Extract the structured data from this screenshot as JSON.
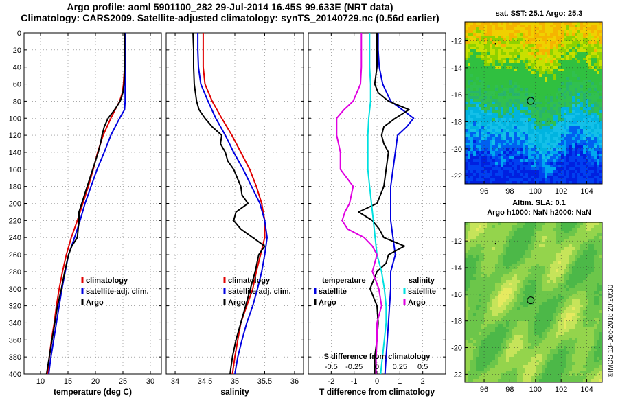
{
  "header": {
    "title_line1": "Argo profile: aoml 5901100_282 29-Jul-2014 16.45S 99.633E (NRT data)",
    "title_line2": "Climatology: CARS2009. Satellite-adjusted climatology: synTS_20140729.nc (0.56d earlier)"
  },
  "maps": {
    "sst": {
      "title": "sat. SST: 25.1 Argo: 25.3",
      "xticks": [
        96,
        98,
        100,
        102,
        104
      ],
      "yticks": [
        -12,
        -14,
        -16,
        -18,
        -20,
        -22
      ],
      "xlim": [
        94.5,
        105.2
      ],
      "ylim": [
        -22.6,
        -10.6
      ],
      "argo_lon": 99.63,
      "argo_lat": -16.45,
      "dot_lon": 96.9,
      "dot_lat": -12.2
    },
    "sla": {
      "title_line1": "Altim. SLA: 0.1",
      "title_line2": "Argo h1000: NaN h2000: NaN",
      "xticks": [
        96,
        98,
        100,
        102,
        104
      ],
      "yticks": [
        -12,
        -14,
        -16,
        -18,
        -20,
        -22
      ],
      "xlim": [
        94.5,
        105.2
      ],
      "ylim": [
        -22.6,
        -10.6
      ],
      "argo_lon": 99.63,
      "argo_lat": -16.45,
      "dot_lon": 96.9,
      "dot_lat": -12.2
    }
  },
  "credit": "©IMOS 13-Dec-2018 20:20:30",
  "colors": {
    "climatology": "#e00000",
    "satellite": "#0000e0",
    "argo": "#000000",
    "sat_salinity": "#00e0e0",
    "sal_salinity": "#e000e0"
  },
  "chart_data": [
    {
      "type": "line",
      "id": "temperature",
      "xlabel": "temperature (deg C)",
      "ylabel": "",
      "xlim": [
        7,
        32
      ],
      "ylim": [
        400,
        0
      ],
      "xticks": [
        10,
        15,
        20,
        25,
        30
      ],
      "yticks": [
        0,
        20,
        40,
        60,
        80,
        100,
        120,
        140,
        160,
        180,
        200,
        220,
        240,
        260,
        280,
        300,
        320,
        340,
        360,
        380,
        400
      ],
      "legend": [
        "climatology",
        "satellite-adj. clim.",
        "Argo"
      ],
      "legend_position": "lower-right",
      "series": [
        {
          "name": "climatology",
          "color": "#e00000",
          "depth": [
            0,
            20,
            40,
            60,
            70,
            80,
            90,
            100,
            120,
            140,
            160,
            180,
            200,
            220,
            240,
            260,
            280,
            300,
            320,
            340,
            360,
            380,
            400
          ],
          "values": [
            25.3,
            25.3,
            25.3,
            25.1,
            24.9,
            24.4,
            23.6,
            22.8,
            21.4,
            20.4,
            19.6,
            18.7,
            17.7,
            16.7,
            15.6,
            14.7,
            14.0,
            13.4,
            12.9,
            12.5,
            12.0,
            11.6,
            11.3
          ]
        },
        {
          "name": "satellite-adj. clim.",
          "color": "#0000e0",
          "depth": [
            0,
            20,
            40,
            60,
            80,
            90,
            100,
            120,
            140,
            160,
            180,
            200,
            220,
            240,
            260,
            280,
            300,
            320,
            340,
            360,
            380,
            400
          ],
          "values": [
            25.4,
            25.4,
            25.4,
            25.4,
            25.4,
            25.3,
            24.4,
            22.8,
            21.6,
            20.3,
            19.2,
            18.1,
            17.2,
            16.2,
            15.1,
            14.5,
            13.9,
            13.4,
            12.9,
            12.4,
            11.9,
            11.5
          ]
        },
        {
          "name": "Argo",
          "color": "#000000",
          "depth": [
            0,
            20,
            40,
            60,
            70,
            80,
            90,
            100,
            110,
            120,
            130,
            140,
            150,
            160,
            180,
            200,
            210,
            220,
            240,
            250,
            260,
            280,
            300,
            320,
            340,
            360,
            380,
            400
          ],
          "values": [
            25.3,
            25.3,
            25.3,
            25.2,
            25.0,
            24.5,
            23.5,
            22.3,
            21.6,
            21.2,
            20.9,
            20.5,
            20.0,
            19.5,
            18.5,
            17.5,
            17.0,
            17.0,
            16.7,
            15.7,
            15.1,
            14.4,
            13.8,
            13.1,
            12.6,
            12.1,
            11.6,
            11.1
          ]
        }
      ]
    },
    {
      "type": "line",
      "id": "salinity",
      "xlabel": "salinity",
      "ylabel": "",
      "xlim": [
        33.85,
        36.15
      ],
      "ylim": [
        400,
        0
      ],
      "xticks": [
        34,
        34.5,
        35,
        35.5,
        36
      ],
      "legend": [
        "climatology",
        "satellite-adj. clim.",
        "Argo"
      ],
      "legend_position": "lower-right",
      "series": [
        {
          "name": "climatology",
          "color": "#e00000",
          "depth": [
            0,
            20,
            40,
            60,
            80,
            100,
            120,
            140,
            160,
            180,
            200,
            220,
            240,
            260,
            280,
            300,
            320,
            340,
            360,
            380,
            400
          ],
          "values": [
            34.47,
            34.47,
            34.47,
            34.5,
            34.62,
            34.78,
            34.95,
            35.1,
            35.25,
            35.36,
            35.45,
            35.5,
            35.5,
            35.43,
            35.36,
            35.3,
            35.2,
            35.1,
            35.05,
            35.0,
            34.96
          ]
        },
        {
          "name": "satellite-adj. clim.",
          "color": "#0000e0",
          "depth": [
            0,
            20,
            40,
            60,
            80,
            100,
            120,
            140,
            160,
            180,
            200,
            220,
            240,
            260,
            280,
            300,
            320,
            340,
            360,
            380,
            400
          ],
          "values": [
            34.38,
            34.38,
            34.39,
            34.43,
            34.55,
            34.68,
            34.84,
            34.98,
            35.14,
            35.28,
            35.42,
            35.5,
            35.54,
            35.5,
            35.45,
            35.38,
            35.3,
            35.2,
            35.12,
            35.05,
            35.0
          ]
        },
        {
          "name": "Argo",
          "color": "#000000",
          "depth": [
            0,
            20,
            40,
            60,
            80,
            90,
            100,
            110,
            120,
            130,
            140,
            150,
            160,
            180,
            190,
            200,
            205,
            210,
            220,
            230,
            240,
            250,
            260,
            280,
            300,
            320,
            340,
            360,
            380,
            400
          ],
          "values": [
            34.3,
            34.31,
            34.31,
            34.32,
            34.36,
            34.4,
            34.5,
            34.62,
            34.78,
            34.76,
            34.84,
            34.88,
            34.98,
            35.1,
            35.12,
            35.22,
            35.12,
            35.02,
            34.98,
            35.1,
            35.3,
            35.5,
            35.4,
            35.34,
            35.26,
            35.18,
            35.1,
            35.02,
            34.96,
            34.92
          ]
        }
      ]
    },
    {
      "type": "line",
      "id": "differences",
      "xlabel": "T difference from climatology",
      "xlabel_top": "S difference from climatology",
      "ylabel": "",
      "xlim": [
        -3,
        3
      ],
      "ylim": [
        400,
        0
      ],
      "xticks": [
        -2,
        -1,
        0,
        1,
        2
      ],
      "xlim_s": [
        -0.75,
        0.75
      ],
      "xticks_s": [
        -0.5,
        -0.25,
        0,
        0.25,
        0.5
      ],
      "xticklabels_s": [
        "-0.5",
        "-0.25",
        "0",
        "0.25",
        "0.5"
      ],
      "legend_temperature_title": "temperature",
      "legend_salinity_title": "salinity",
      "legend": [
        "satellite",
        "Argo"
      ],
      "legend_position": "lower-middle",
      "series": [
        {
          "name": "temperature satellite",
          "axis": "T",
          "color": "#0000e0",
          "depth": [
            0,
            20,
            40,
            60,
            80,
            90,
            100,
            110,
            120,
            140,
            160,
            180,
            200,
            220,
            240,
            260,
            280,
            300,
            320,
            340,
            360,
            380,
            400
          ],
          "values": [
            0.05,
            0.05,
            0.1,
            0.25,
            0.6,
            1.1,
            1.6,
            1.3,
            0.9,
            0.8,
            0.7,
            0.6,
            0.6,
            0.6,
            0.7,
            0.8,
            0.6,
            0.6,
            0.55,
            0.5,
            0.45,
            0.4,
            0.35
          ]
        },
        {
          "name": "temperature Argo",
          "axis": "T",
          "color": "#000000",
          "depth": [
            0,
            20,
            40,
            60,
            70,
            80,
            90,
            100,
            110,
            120,
            130,
            140,
            160,
            180,
            200,
            210,
            220,
            230,
            240,
            250,
            260,
            270,
            280,
            300,
            320,
            340,
            360,
            380,
            400
          ],
          "values": [
            0.0,
            0.0,
            0.0,
            -0.1,
            0.05,
            0.5,
            1.4,
            0.8,
            0.3,
            0.2,
            0.3,
            0.5,
            0.4,
            0.3,
            0.0,
            -0.8,
            -0.2,
            0.1,
            0.3,
            1.2,
            0.5,
            0.4,
            0.0,
            -0.3,
            0.0,
            0.05,
            0.0,
            -0.1,
            -0.1
          ]
        },
        {
          "name": "salinity satellite",
          "axis": "S",
          "color": "#00e0e0",
          "depth": [
            0,
            20,
            40,
            60,
            80,
            100,
            120,
            140,
            160,
            180,
            200,
            220,
            240,
            260,
            280,
            300,
            320,
            340,
            360,
            380,
            400
          ],
          "values": [
            -0.08,
            -0.08,
            -0.08,
            -0.07,
            -0.07,
            -0.09,
            -0.1,
            -0.1,
            -0.1,
            -0.08,
            -0.06,
            -0.04,
            -0.02,
            0.0,
            0.05,
            0.08,
            0.1,
            0.1,
            0.08,
            0.06,
            0.04
          ]
        },
        {
          "name": "salinity Argo",
          "axis": "S",
          "color": "#e000e0",
          "depth": [
            0,
            20,
            40,
            60,
            80,
            90,
            100,
            120,
            140,
            160,
            180,
            200,
            210,
            220,
            230,
            240,
            250,
            260,
            280,
            300,
            320,
            340,
            360,
            380,
            400
          ],
          "values": [
            -0.17,
            -0.17,
            -0.17,
            -0.18,
            -0.26,
            -0.36,
            -0.44,
            -0.44,
            -0.4,
            -0.4,
            -0.26,
            -0.3,
            -0.35,
            -0.38,
            -0.32,
            -0.14,
            -0.05,
            0.0,
            -0.05,
            0.02,
            0.05,
            0.0,
            0.0,
            -0.01,
            -0.01
          ]
        }
      ]
    }
  ]
}
